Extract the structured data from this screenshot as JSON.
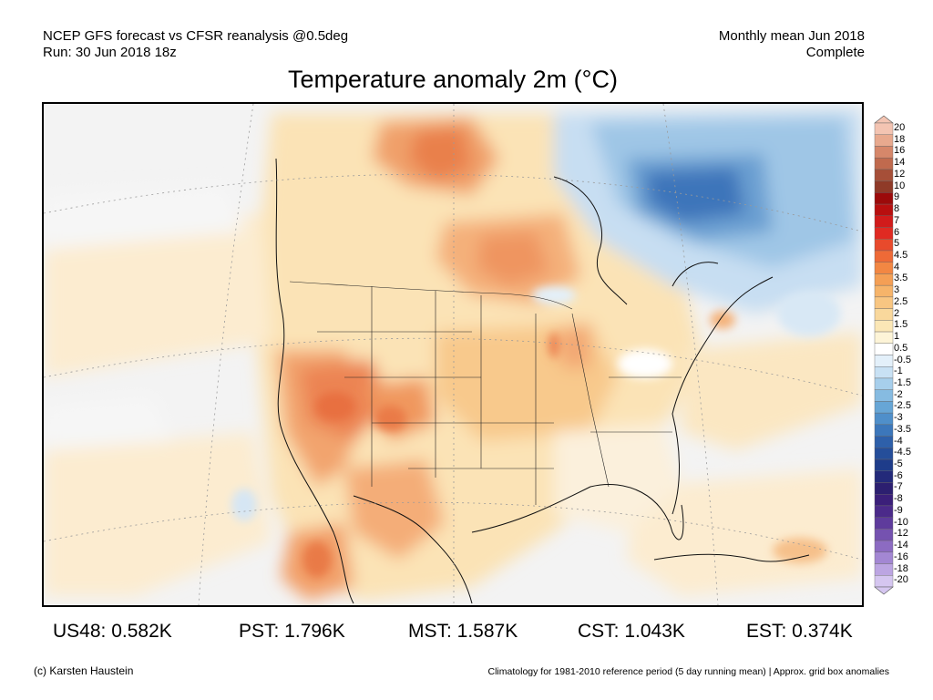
{
  "header": {
    "line1": "NCEP GFS forecast vs CFSR reanalysis @0.5deg",
    "line2": "Run: 30 Jun 2018 18z",
    "right1": "Monthly mean Jun 2018",
    "right2": "Complete"
  },
  "title": "Temperature anomaly 2m (°C)",
  "colorbar": {
    "labels": [
      "20",
      "18",
      "16",
      "14",
      "12",
      "10",
      "9",
      "8",
      "7",
      "6",
      "5",
      "4.5",
      "4",
      "3.5",
      "3",
      "2.5",
      "2",
      "1.5",
      "1",
      "0.5",
      "-0.5",
      "-1",
      "-1.5",
      "-2",
      "-2.5",
      "-3",
      "-3.5",
      "-4",
      "-4.5",
      "-5",
      "-6",
      "-7",
      "-8",
      "-9",
      "-10",
      "-12",
      "-14",
      "-16",
      "-18",
      "-20"
    ],
    "colors": [
      "#f3c4b2",
      "#e8a98e",
      "#d6876a",
      "#c06a4e",
      "#a64f38",
      "#8f3a28",
      "#9c0a0a",
      "#b80f0f",
      "#d11b1b",
      "#e02a22",
      "#e84a2c",
      "#ee6a37",
      "#f28743",
      "#f49f55",
      "#f6b46a",
      "#f8c682",
      "#f9d89c",
      "#fbe7b6",
      "#fdf4d7",
      "#ffffff",
      "#e3f0fa",
      "#c8e1f4",
      "#a7cfec",
      "#86bbe1",
      "#67a6d6",
      "#4f8fca",
      "#3c77bb",
      "#2e60aa",
      "#254e9a",
      "#1e3c8a",
      "#232a7a",
      "#2c1f70",
      "#3b1f7a",
      "#4b2a8a",
      "#5e3b9c",
      "#7552b0",
      "#8c6bc2",
      "#a387d3",
      "#bca5e2",
      "#d5c6f0"
    ]
  },
  "stats": [
    "US48: 0.582K",
    "PST: 1.796K",
    "MST: 1.587K",
    "CST: 1.043K",
    "EST: 0.374K"
  ],
  "footer": {
    "credit": "(c) Karsten Haustein",
    "note": "Climatology for 1981-2010 reference period (5 day running mean) | Approx. grid box anomalies"
  }
}
